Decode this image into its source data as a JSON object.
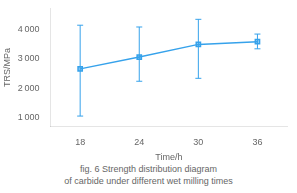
{
  "chart_data": {
    "type": "line",
    "title": "fig. 6 Strength distribution diagram",
    "subtitle": "of carbide under different wet milling times",
    "xlabel": "Time/h",
    "ylabel": "TRS/MPa",
    "x": [
      18,
      24,
      30,
      36
    ],
    "values": [
      2650,
      3050,
      3480,
      3570
    ],
    "yerr_lower": [
      1600,
      820,
      1150,
      240
    ],
    "yerr_upper": [
      1480,
      1020,
      850,
      260
    ],
    "xlim": [
      15,
      39
    ],
    "ylim": [
      700,
      4700
    ],
    "xticks": [
      18,
      24,
      30,
      36
    ],
    "yticks": [
      {
        "value": 1000,
        "label": "1 000"
      },
      {
        "value": 2000,
        "label": "2 000"
      },
      {
        "value": 3000,
        "label": "3 000"
      },
      {
        "value": 4000,
        "label": "4 000"
      }
    ],
    "marker": "square",
    "line_style": "solid",
    "grid": false
  }
}
